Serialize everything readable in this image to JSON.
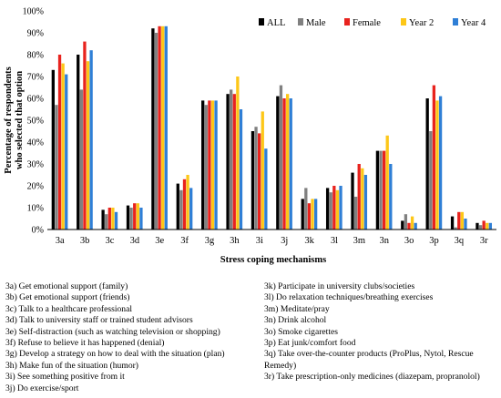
{
  "chart_data": {
    "type": "bar",
    "ylabel": "Percentage of respondents who selected that option",
    "xlabel": "Stress coping mechanisms",
    "ylim": [
      0,
      100
    ],
    "ytick_labels": [
      "0%",
      "10%",
      "20%",
      "30%",
      "40%",
      "50%",
      "60%",
      "70%",
      "80%",
      "90%",
      "100%"
    ],
    "grid": false,
    "legend_position": "top-right",
    "categories": [
      "3a",
      "3b",
      "3c",
      "3d",
      "3e",
      "3f",
      "3g",
      "3h",
      "3i",
      "3j",
      "3k",
      "3l",
      "3m",
      "3n",
      "3o",
      "3p",
      "3q",
      "3r"
    ],
    "series": [
      {
        "name": "ALL",
        "color": "#000000",
        "values": [
          73,
          80,
          9,
          11,
          92,
          21,
          59,
          62,
          45,
          61,
          14,
          19,
          26,
          36,
          4,
          60,
          6,
          3
        ]
      },
      {
        "name": "Male",
        "color": "#808080",
        "values": [
          57,
          64,
          7,
          10,
          90,
          18,
          57,
          64,
          47,
          66,
          19,
          17,
          15,
          36,
          7,
          45,
          1,
          2
        ]
      },
      {
        "name": "Female",
        "color": "#e8231e",
        "values": [
          80,
          86,
          10,
          12,
          93,
          23,
          59,
          62,
          44,
          60,
          12,
          20,
          30,
          36,
          3,
          66,
          8,
          4
        ]
      },
      {
        "name": "Year 2",
        "color": "#fdc718",
        "values": [
          76,
          77,
          10,
          12,
          93,
          25,
          59,
          70,
          54,
          62,
          14,
          18,
          28,
          43,
          6,
          59,
          8,
          3
        ]
      },
      {
        "name": "Year 4",
        "color": "#2f7fd6",
        "values": [
          71,
          82,
          8,
          10,
          93,
          19,
          59,
          55,
          37,
          60,
          14,
          20,
          25,
          30,
          3,
          61,
          5,
          3
        ]
      }
    ]
  },
  "key": {
    "left": [
      "3a) Get emotional support (family)",
      "3b) Get emotional support (friends)",
      "3c) Talk to a healthcare professional",
      "3d) Talk to university staff or trained student advisors",
      "3e) Self-distraction (such as watching television or shopping)",
      "3f) Refuse to believe it has happened (denial)",
      "3g) Develop a strategy on how to deal with the situation (plan)",
      "3h) Make fun of the situation (humor)",
      "3i) See something positive from it",
      "3j) Do exercise/sport"
    ],
    "right": [
      "3k) Participate in university clubs/societies",
      "3l) Do relaxation techniques/breathing exercises",
      "3m) Meditate/pray",
      "3n) Drink alcohol",
      "3o) Smoke cigarettes",
      "3p) Eat junk/comfort food",
      "3q) Take over-the-counter products (ProPlus, Nytol, Rescue Remedy)",
      "3r) Take prescription-only medicines (diazepam, propranolol)"
    ]
  }
}
